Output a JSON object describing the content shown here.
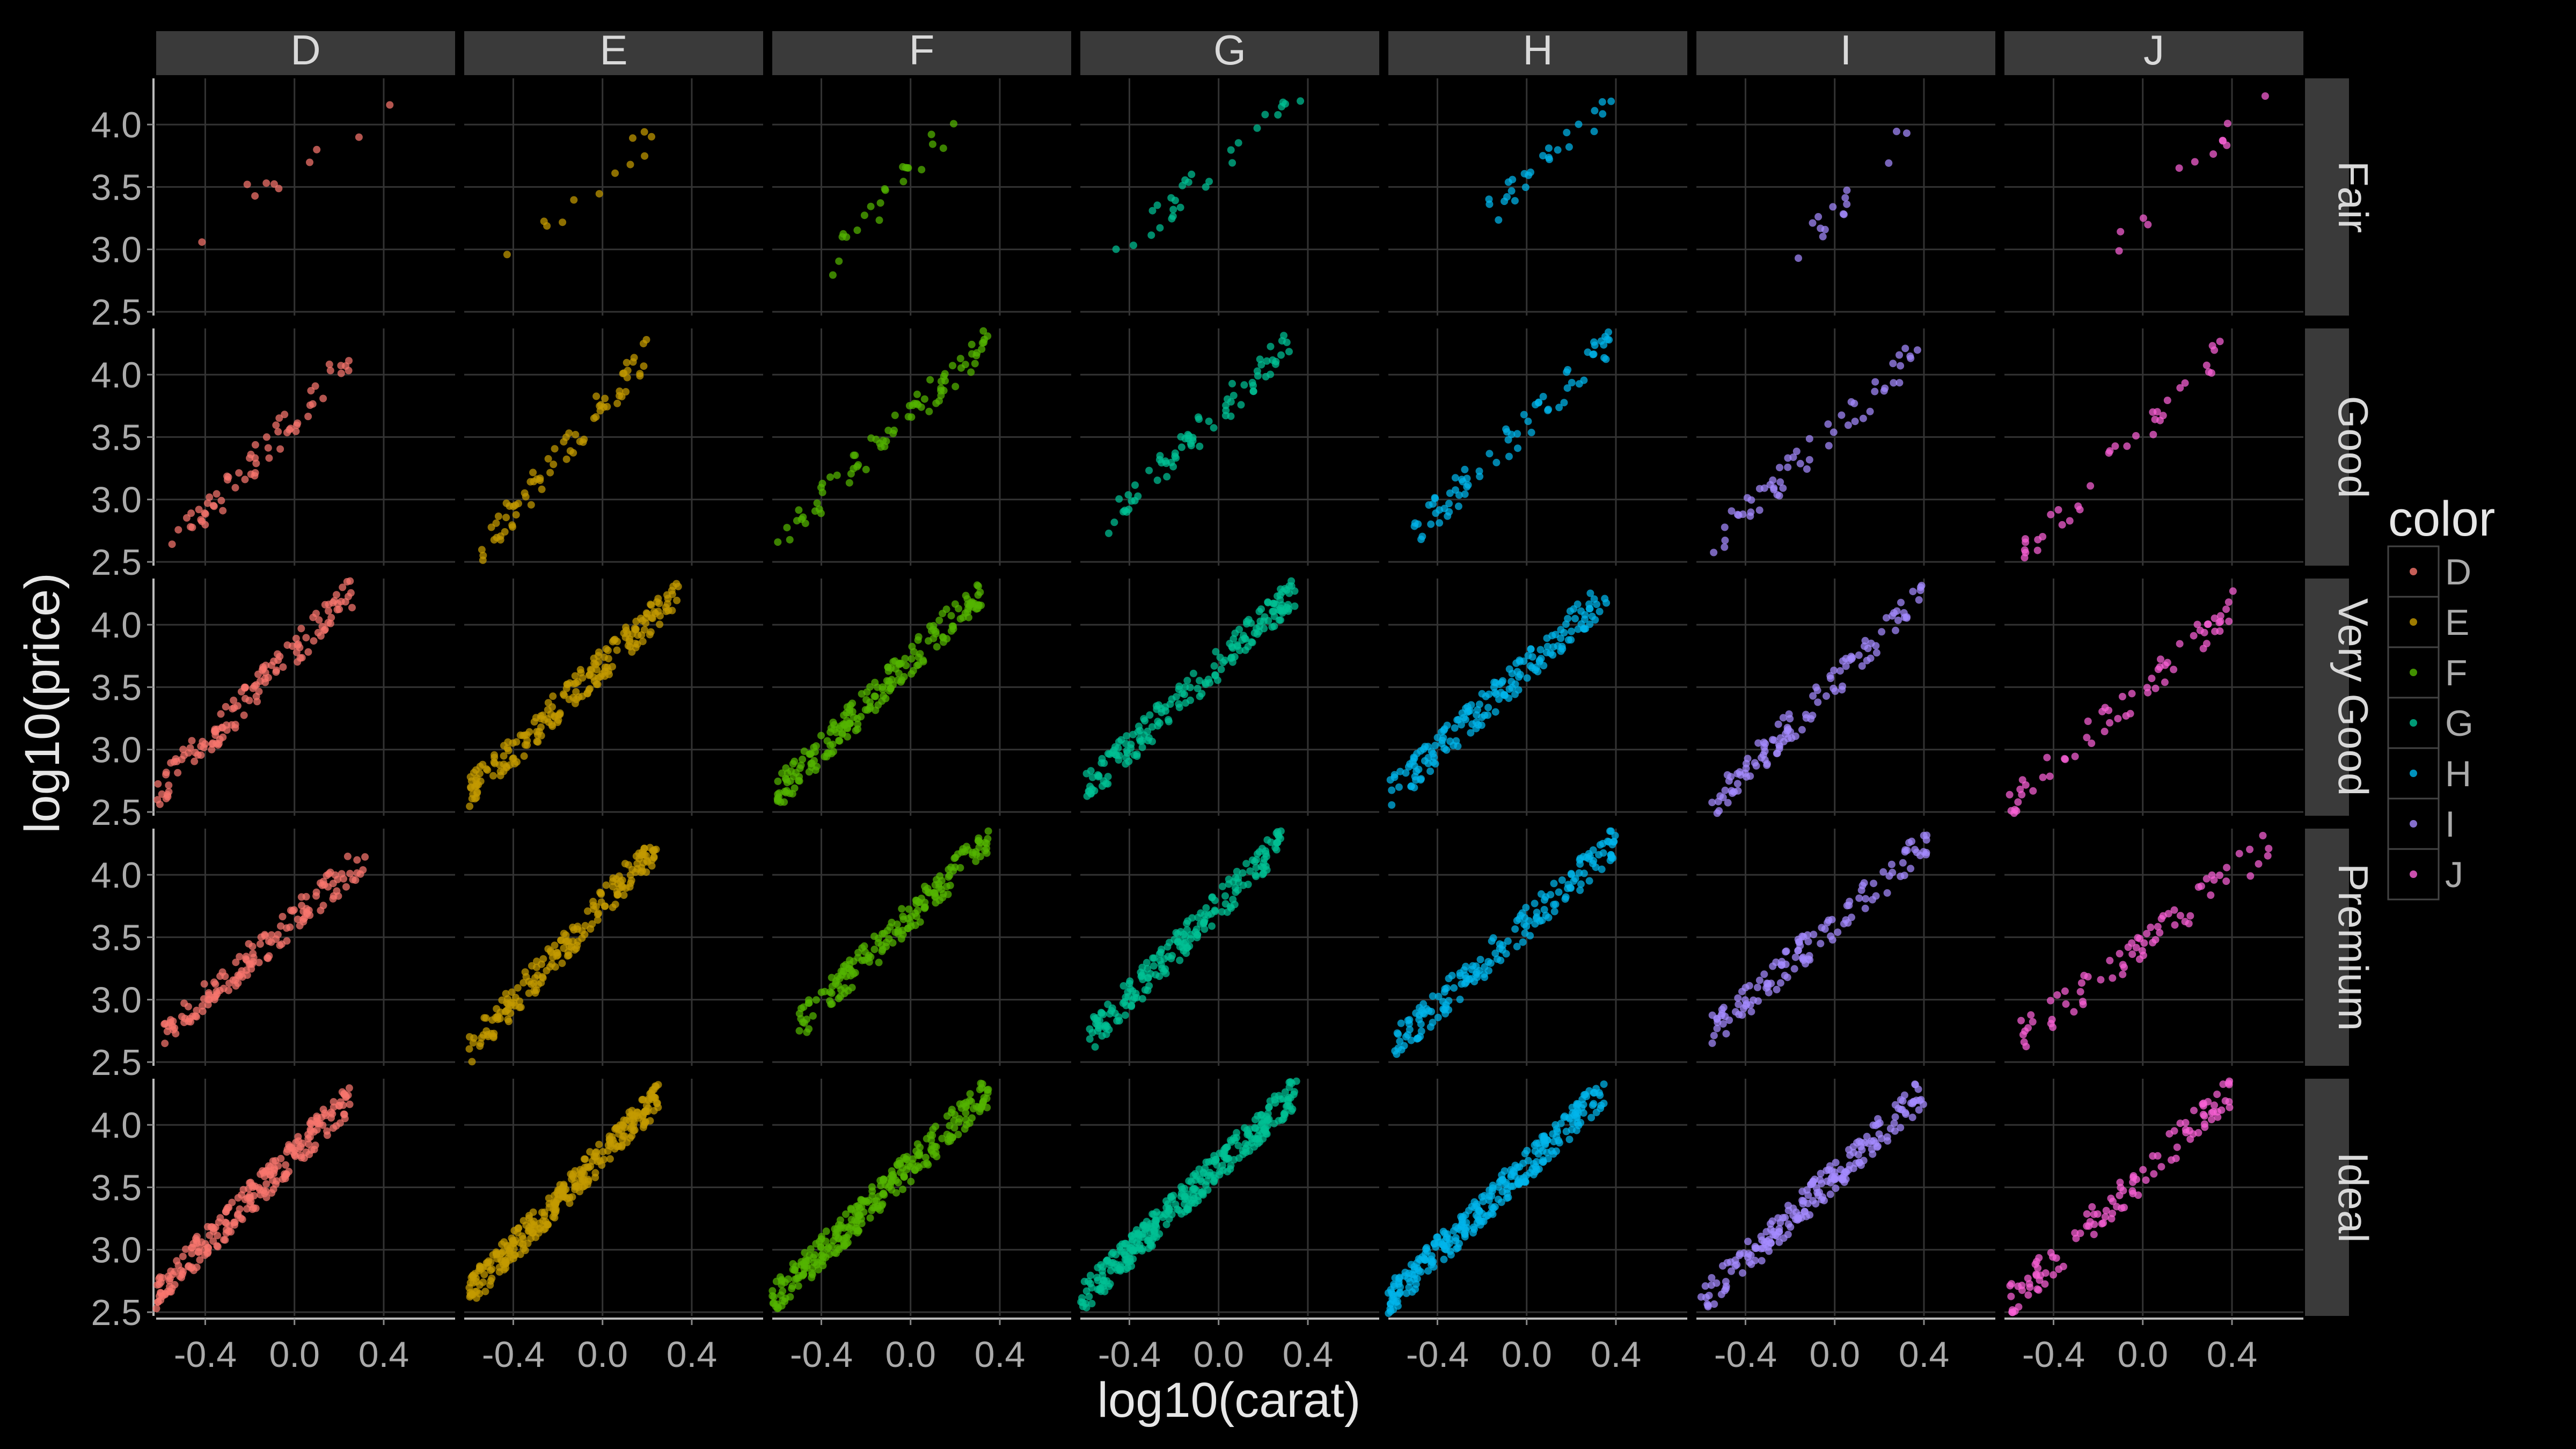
{
  "chart_data": {
    "type": "scatter",
    "xlabel": "log10(carat)",
    "ylabel": "log10(price)",
    "xlim": [
      -0.62,
      0.72
    ],
    "ylim": [
      2.47,
      4.37
    ],
    "x_ticks": [
      -0.4,
      0.0,
      0.4
    ],
    "x_tick_labels": [
      "-0.4",
      "0.0",
      "0.4"
    ],
    "y_ticks": [
      2.5,
      3.0,
      3.5,
      4.0
    ],
    "y_tick_labels": [
      "2.5",
      "3.0",
      "3.5",
      "4.0"
    ],
    "grid": true,
    "facet_columns": [
      "D",
      "E",
      "F",
      "G",
      "H",
      "I",
      "J"
    ],
    "facet_rows": [
      "Fair",
      "Good",
      "Very Good",
      "Premium",
      "Ideal"
    ],
    "legend": {
      "title": "color",
      "placement": "right",
      "labels": [
        "D",
        "E",
        "F",
        "G",
        "H",
        "I",
        "J"
      ],
      "colors": [
        "#F8766D",
        "#C49A00",
        "#53B400",
        "#00C094",
        "#00B6EB",
        "#A58AFF",
        "#FB61D7"
      ]
    },
    "panels": [
      {
        "col": "D",
        "row": "Fair",
        "n": 10,
        "x": [
          -0.46,
          0.48
        ],
        "y": [
          3.1,
          4.22
        ]
      },
      {
        "col": "E",
        "row": "Fair",
        "n": 12,
        "x": [
          -0.5,
          0.25
        ],
        "y": [
          2.78,
          3.95
        ]
      },
      {
        "col": "F",
        "row": "Fair",
        "n": 22,
        "x": [
          -0.35,
          0.2
        ],
        "y": [
          2.9,
          4.02
        ]
      },
      {
        "col": "G",
        "row": "Fair",
        "n": 28,
        "x": [
          -0.48,
          0.38
        ],
        "y": [
          2.92,
          4.25
        ]
      },
      {
        "col": "H",
        "row": "Fair",
        "n": 26,
        "x": [
          -0.2,
          0.38
        ],
        "y": [
          3.25,
          4.15
        ]
      },
      {
        "col": "I",
        "row": "Fair",
        "n": 15,
        "x": [
          -0.18,
          0.42
        ],
        "y": [
          3.0,
          4.08
        ]
      },
      {
        "col": "J",
        "row": "Fair",
        "n": 12,
        "x": [
          -0.12,
          0.58
        ],
        "y": [
          3.07,
          4.27
        ]
      },
      {
        "col": "D",
        "row": "Good",
        "n": 60,
        "x": [
          -0.55,
          0.32
        ],
        "y": [
          2.6,
          4.27
        ]
      },
      {
        "col": "E",
        "row": "Good",
        "n": 70,
        "x": [
          -0.55,
          0.2
        ],
        "y": [
          2.6,
          4.18
        ]
      },
      {
        "col": "F",
        "row": "Good",
        "n": 75,
        "x": [
          -0.6,
          0.35
        ],
        "y": [
          2.65,
          4.28
        ]
      },
      {
        "col": "G",
        "row": "Good",
        "n": 70,
        "x": [
          -0.5,
          0.32
        ],
        "y": [
          2.8,
          4.27
        ]
      },
      {
        "col": "H",
        "row": "Good",
        "n": 70,
        "x": [
          -0.52,
          0.37
        ],
        "y": [
          2.7,
          4.25
        ]
      },
      {
        "col": "I",
        "row": "Good",
        "n": 55,
        "x": [
          -0.55,
          0.4
        ],
        "y": [
          2.65,
          4.22
        ]
      },
      {
        "col": "J",
        "row": "Good",
        "n": 35,
        "x": [
          -0.55,
          0.4
        ],
        "y": [
          2.55,
          4.28
        ]
      },
      {
        "col": "D",
        "row": "Very Good",
        "n": 130,
        "x": [
          -0.62,
          0.26
        ],
        "y": [
          2.65,
          4.27
        ]
      },
      {
        "col": "E",
        "row": "Very Good",
        "n": 200,
        "x": [
          -0.6,
          0.35
        ],
        "y": [
          2.65,
          4.28
        ]
      },
      {
        "col": "F",
        "row": "Very Good",
        "n": 200,
        "x": [
          -0.6,
          0.32
        ],
        "y": [
          2.65,
          4.28
        ]
      },
      {
        "col": "G",
        "row": "Very Good",
        "n": 180,
        "x": [
          -0.6,
          0.35
        ],
        "y": [
          2.68,
          4.28
        ]
      },
      {
        "col": "H",
        "row": "Very Good",
        "n": 170,
        "x": [
          -0.62,
          0.37
        ],
        "y": [
          2.63,
          4.27
        ]
      },
      {
        "col": "I",
        "row": "Very Good",
        "n": 110,
        "x": [
          -0.55,
          0.4
        ],
        "y": [
          2.55,
          4.27
        ]
      },
      {
        "col": "J",
        "row": "Very Good",
        "n": 60,
        "x": [
          -0.6,
          0.45
        ],
        "y": [
          2.55,
          4.22
        ]
      },
      {
        "col": "D",
        "row": "Premium",
        "n": 140,
        "x": [
          -0.6,
          0.32
        ],
        "y": [
          2.7,
          4.15
        ]
      },
      {
        "col": "E",
        "row": "Premium",
        "n": 180,
        "x": [
          -0.6,
          0.25
        ],
        "y": [
          2.6,
          4.25
        ]
      },
      {
        "col": "F",
        "row": "Premium",
        "n": 170,
        "x": [
          -0.5,
          0.35
        ],
        "y": [
          2.8,
          4.28
        ]
      },
      {
        "col": "G",
        "row": "Premium",
        "n": 190,
        "x": [
          -0.58,
          0.28
        ],
        "y": [
          2.7,
          4.27
        ]
      },
      {
        "col": "H",
        "row": "Premium",
        "n": 170,
        "x": [
          -0.6,
          0.4
        ],
        "y": [
          2.63,
          4.27
        ]
      },
      {
        "col": "I",
        "row": "Premium",
        "n": 120,
        "x": [
          -0.55,
          0.42
        ],
        "y": [
          2.75,
          4.27
        ]
      },
      {
        "col": "J",
        "row": "Premium",
        "n": 70,
        "x": [
          -0.55,
          0.6
        ],
        "y": [
          2.7,
          4.27
        ]
      },
      {
        "col": "D",
        "row": "Ideal",
        "n": 230,
        "x": [
          -0.62,
          0.25
        ],
        "y": [
          2.65,
          4.22
        ]
      },
      {
        "col": "E",
        "row": "Ideal",
        "n": 300,
        "x": [
          -0.6,
          0.25
        ],
        "y": [
          2.65,
          4.23
        ]
      },
      {
        "col": "F",
        "row": "Ideal",
        "n": 280,
        "x": [
          -0.62,
          0.35
        ],
        "y": [
          2.6,
          4.28
        ]
      },
      {
        "col": "G",
        "row": "Ideal",
        "n": 320,
        "x": [
          -0.62,
          0.35
        ],
        "y": [
          2.6,
          4.28
        ]
      },
      {
        "col": "H",
        "row": "Ideal",
        "n": 280,
        "x": [
          -0.62,
          0.35
        ],
        "y": [
          2.6,
          4.28
        ]
      },
      {
        "col": "I",
        "row": "Ideal",
        "n": 200,
        "x": [
          -0.6,
          0.4
        ],
        "y": [
          2.58,
          4.27
        ]
      },
      {
        "col": "J",
        "row": "Ideal",
        "n": 110,
        "x": [
          -0.6,
          0.4
        ],
        "y": [
          2.58,
          4.28
        ]
      }
    ]
  }
}
